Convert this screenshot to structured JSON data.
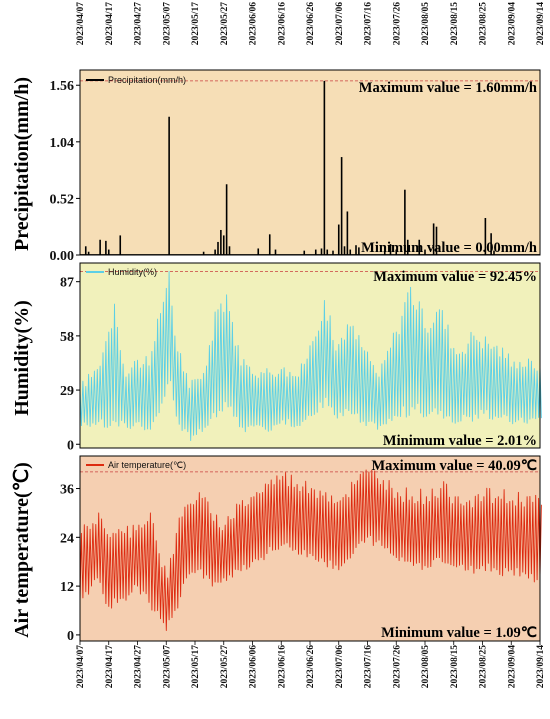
{
  "dates": [
    "2023/04/07",
    "2023/04/17",
    "2023/04/27",
    "2023/05/07",
    "2023/05/17",
    "2023/05/27",
    "2023/06/06",
    "2023/06/16",
    "2023/06/26",
    "2023/07/06",
    "2023/07/16",
    "2023/07/26",
    "2023/08/05",
    "2023/08/15",
    "2023/08/25",
    "2023/09/04",
    "2023/09/14"
  ],
  "chart_data": [
    {
      "type": "bar",
      "ylabel": "Precipitation(mm/h)",
      "legend": "Precipitation(mm/h)",
      "yticks": [
        "0.00",
        "0.52",
        "1.04",
        "1.56"
      ],
      "ylim": [
        0,
        1.7
      ],
      "max_label": "Maximum value = 1.60mm/h",
      "min_label": "Minimum value = 0.00mm/h",
      "max_value": 1.6,
      "min_value": 0.0,
      "background": "#f6deb6",
      "color": "#000000",
      "events": [
        {
          "x": "2023/04/09",
          "y": 0.08
        },
        {
          "x": "2023/04/10",
          "y": 0.03
        },
        {
          "x": "2023/04/14",
          "y": 0.14
        },
        {
          "x": "2023/04/16",
          "y": 0.13
        },
        {
          "x": "2023/04/17",
          "y": 0.05
        },
        {
          "x": "2023/04/21",
          "y": 0.18
        },
        {
          "x": "2023/05/08",
          "y": 1.27
        },
        {
          "x": "2023/05/20",
          "y": 0.03
        },
        {
          "x": "2023/05/24",
          "y": 0.05
        },
        {
          "x": "2023/05/25",
          "y": 0.12
        },
        {
          "x": "2023/05/26",
          "y": 0.23
        },
        {
          "x": "2023/05/27",
          "y": 0.18
        },
        {
          "x": "2023/05/28",
          "y": 0.65
        },
        {
          "x": "2023/05/29",
          "y": 0.08
        },
        {
          "x": "2023/06/08",
          "y": 0.06
        },
        {
          "x": "2023/06/12",
          "y": 0.19
        },
        {
          "x": "2023/06/14",
          "y": 0.05
        },
        {
          "x": "2023/06/24",
          "y": 0.04
        },
        {
          "x": "2023/06/28",
          "y": 0.05
        },
        {
          "x": "2023/06/30",
          "y": 0.06
        },
        {
          "x": "2023/07/01",
          "y": 1.6
        },
        {
          "x": "2023/07/02",
          "y": 0.05
        },
        {
          "x": "2023/07/04",
          "y": 0.04
        },
        {
          "x": "2023/07/06",
          "y": 0.28
        },
        {
          "x": "2023/07/07",
          "y": 0.9
        },
        {
          "x": "2023/07/08",
          "y": 0.08
        },
        {
          "x": "2023/07/09",
          "y": 0.4
        },
        {
          "x": "2023/07/10",
          "y": 0.05
        },
        {
          "x": "2023/07/12",
          "y": 0.09
        },
        {
          "x": "2023/07/13",
          "y": 0.07
        },
        {
          "x": "2023/07/22",
          "y": 0.04
        },
        {
          "x": "2023/07/24",
          "y": 0.1
        },
        {
          "x": "2023/07/26",
          "y": 0.05
        },
        {
          "x": "2023/07/29",
          "y": 0.6
        },
        {
          "x": "2023/07/30",
          "y": 0.14
        },
        {
          "x": "2023/08/03",
          "y": 0.14
        },
        {
          "x": "2023/08/05",
          "y": 0.05
        },
        {
          "x": "2023/08/08",
          "y": 0.29
        },
        {
          "x": "2023/08/09",
          "y": 0.26
        },
        {
          "x": "2023/08/26",
          "y": 0.34
        },
        {
          "x": "2023/08/28",
          "y": 0.2
        },
        {
          "x": "2023/08/29",
          "y": 0.04
        }
      ]
    },
    {
      "type": "line",
      "ylabel": "Humidity(%)",
      "legend": "Humidity(%)",
      "yticks": [
        "0",
        "29",
        "58",
        "87"
      ],
      "ylim": [
        -2,
        97
      ],
      "max_label": "Maximum value = 92.45%",
      "min_label": "Minimum value = 2.01%",
      "max_value": 92.45,
      "min_value": 2.01,
      "background": "#f1f1bb",
      "color": "#5ccfe6",
      "daily": [
        {
          "x": "2023/04/07",
          "min": 10,
          "max": 30
        },
        {
          "x": "2023/04/13",
          "min": 12,
          "max": 40
        },
        {
          "x": "2023/04/17",
          "min": 10,
          "max": 60
        },
        {
          "x": "2023/04/19",
          "min": 12,
          "max": 75
        },
        {
          "x": "2023/04/23",
          "min": 9,
          "max": 36
        },
        {
          "x": "2023/04/27",
          "min": 12,
          "max": 45
        },
        {
          "x": "2023/05/01",
          "min": 8,
          "max": 42
        },
        {
          "x": "2023/05/03",
          "min": 15,
          "max": 55
        },
        {
          "x": "2023/05/05",
          "min": 22,
          "max": 70
        },
        {
          "x": "2023/05/08",
          "min": 34,
          "max": 92.45
        },
        {
          "x": "2023/05/10",
          "min": 15,
          "max": 58
        },
        {
          "x": "2023/05/15",
          "min": 2.01,
          "max": 30
        },
        {
          "x": "2023/05/20",
          "min": 9,
          "max": 38
        },
        {
          "x": "2023/05/25",
          "min": 18,
          "max": 72
        },
        {
          "x": "2023/05/28",
          "min": 20,
          "max": 80
        },
        {
          "x": "2023/06/02",
          "min": 9,
          "max": 42
        },
        {
          "x": "2023/06/10",
          "min": 8,
          "max": 38
        },
        {
          "x": "2023/06/16",
          "min": 13,
          "max": 40
        },
        {
          "x": "2023/06/22",
          "min": 10,
          "max": 36
        },
        {
          "x": "2023/06/27",
          "min": 16,
          "max": 55
        },
        {
          "x": "2023/07/01",
          "min": 25,
          "max": 77
        },
        {
          "x": "2023/07/05",
          "min": 14,
          "max": 50
        },
        {
          "x": "2023/07/09",
          "min": 18,
          "max": 64
        },
        {
          "x": "2023/07/15",
          "min": 10,
          "max": 50
        },
        {
          "x": "2023/07/20",
          "min": 10,
          "max": 36
        },
        {
          "x": "2023/07/26",
          "min": 15,
          "max": 60
        },
        {
          "x": "2023/07/31",
          "min": 20,
          "max": 84
        },
        {
          "x": "2023/08/05",
          "min": 15,
          "max": 62
        },
        {
          "x": "2023/08/10",
          "min": 18,
          "max": 72
        },
        {
          "x": "2023/08/16",
          "min": 12,
          "max": 48
        },
        {
          "x": "2023/08/22",
          "min": 16,
          "max": 58
        },
        {
          "x": "2023/08/29",
          "min": 15,
          "max": 52
        },
        {
          "x": "2023/09/05",
          "min": 12,
          "max": 44
        },
        {
          "x": "2023/09/14",
          "min": 14,
          "max": 42
        }
      ]
    },
    {
      "type": "line",
      "ylabel": "Air temperature(℃)",
      "legend": "Air temperature(℃)",
      "yticks": [
        "0",
        "12",
        "24",
        "36"
      ],
      "ylim": [
        -1.5,
        44
      ],
      "max_label": "Maximum value = 40.09℃",
      "min_label": "Minimum value = 1.09℃",
      "max_value": 40.09,
      "min_value": 1.09,
      "background": "#f5cfb1",
      "color": "#dd2a10",
      "daily": [
        {
          "x": "2023/04/07",
          "min": 8,
          "max": 25
        },
        {
          "x": "2023/04/10",
          "min": 10,
          "max": 26
        },
        {
          "x": "2023/04/13",
          "min": 14,
          "max": 30
        },
        {
          "x": "2023/04/17",
          "min": 7,
          "max": 24
        },
        {
          "x": "2023/04/22",
          "min": 9,
          "max": 25
        },
        {
          "x": "2023/04/27",
          "min": 12,
          "max": 27
        },
        {
          "x": "2023/05/01",
          "min": 8,
          "max": 30
        },
        {
          "x": "2023/05/04",
          "min": 6,
          "max": 20
        },
        {
          "x": "2023/05/07",
          "min": 1.09,
          "max": 14
        },
        {
          "x": "2023/05/10",
          "min": 6,
          "max": 25
        },
        {
          "x": "2023/05/14",
          "min": 14,
          "max": 32
        },
        {
          "x": "2023/05/18",
          "min": 16,
          "max": 35
        },
        {
          "x": "2023/05/23",
          "min": 12,
          "max": 28
        },
        {
          "x": "2023/05/27",
          "min": 14,
          "max": 27
        },
        {
          "x": "2023/06/01",
          "min": 16,
          "max": 32
        },
        {
          "x": "2023/06/06",
          "min": 18,
          "max": 34
        },
        {
          "x": "2023/06/11",
          "min": 20,
          "max": 37
        },
        {
          "x": "2023/06/16",
          "min": 22,
          "max": 39
        },
        {
          "x": "2023/06/21",
          "min": 21,
          "max": 37
        },
        {
          "x": "2023/06/26",
          "min": 20,
          "max": 36
        },
        {
          "x": "2023/07/01",
          "min": 18,
          "max": 35
        },
        {
          "x": "2023/07/06",
          "min": 16,
          "max": 33
        },
        {
          "x": "2023/07/11",
          "min": 20,
          "max": 37
        },
        {
          "x": "2023/07/16",
          "min": 24,
          "max": 40.09
        },
        {
          "x": "2023/07/21",
          "min": 22,
          "max": 38
        },
        {
          "x": "2023/07/26",
          "min": 19,
          "max": 35
        },
        {
          "x": "2023/07/31",
          "min": 18,
          "max": 34
        },
        {
          "x": "2023/08/05",
          "min": 17,
          "max": 34
        },
        {
          "x": "2023/08/10",
          "min": 19,
          "max": 36
        },
        {
          "x": "2023/08/15",
          "min": 17,
          "max": 34
        },
        {
          "x": "2023/08/20",
          "min": 16,
          "max": 33
        },
        {
          "x": "2023/08/25",
          "min": 17,
          "max": 34
        },
        {
          "x": "2023/08/30",
          "min": 16,
          "max": 34
        },
        {
          "x": "2023/09/04",
          "min": 16,
          "max": 33
        },
        {
          "x": "2023/09/09",
          "min": 15,
          "max": 34
        },
        {
          "x": "2023/09/14",
          "min": 14,
          "max": 32
        }
      ]
    }
  ]
}
